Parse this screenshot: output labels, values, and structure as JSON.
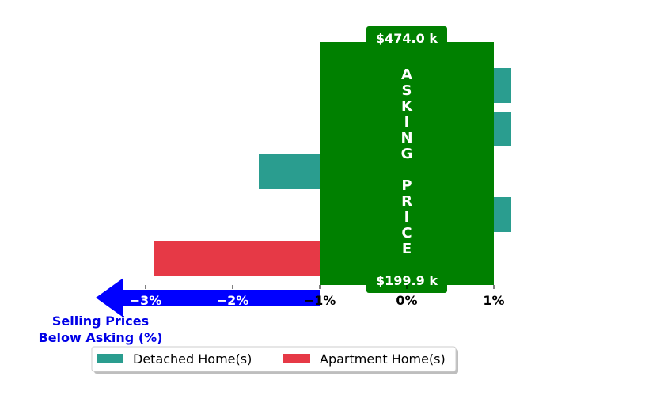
{
  "chart_data": {
    "type": "bar",
    "orientation": "horizontal",
    "xlabel_lines": [
      "Selling Prices",
      "Below Asking (%)"
    ],
    "xlim": [
      -3.7,
      1.2
    ],
    "xticks": [
      -3,
      -2,
      -1,
      0,
      1
    ],
    "tick_labels": [
      "−3%",
      "−2%",
      "−1%",
      "0%",
      "1%"
    ],
    "grid": false,
    "legend_position": "bottom",
    "series": [
      {
        "name": "Detached Home(s)",
        "color": "#2a9d8f",
        "bars": [
          {
            "value": 1.2,
            "row": 0
          },
          {
            "value": 1.2,
            "row": 1
          },
          {
            "value": -1.7,
            "row": 2
          },
          {
            "value": 1.2,
            "row": 3
          }
        ]
      },
      {
        "name": "Apartment Home(s)",
        "color": "#e63946",
        "bars": [
          {
            "value": -2.9,
            "row": 4
          }
        ]
      }
    ],
    "asking_band": {
      "letters_top": [
        "A",
        "S",
        "K",
        "I",
        "N",
        "G"
      ],
      "letters_bottom": [
        "P",
        "R",
        "I",
        "C",
        "E"
      ],
      "top_label": "$474.0 k",
      "bottom_label": "$199.9 k",
      "from": -1.0,
      "to": 1.0,
      "color": "#008000"
    },
    "arrow_color": "#0000ff",
    "caption_color": "#0000e6"
  }
}
